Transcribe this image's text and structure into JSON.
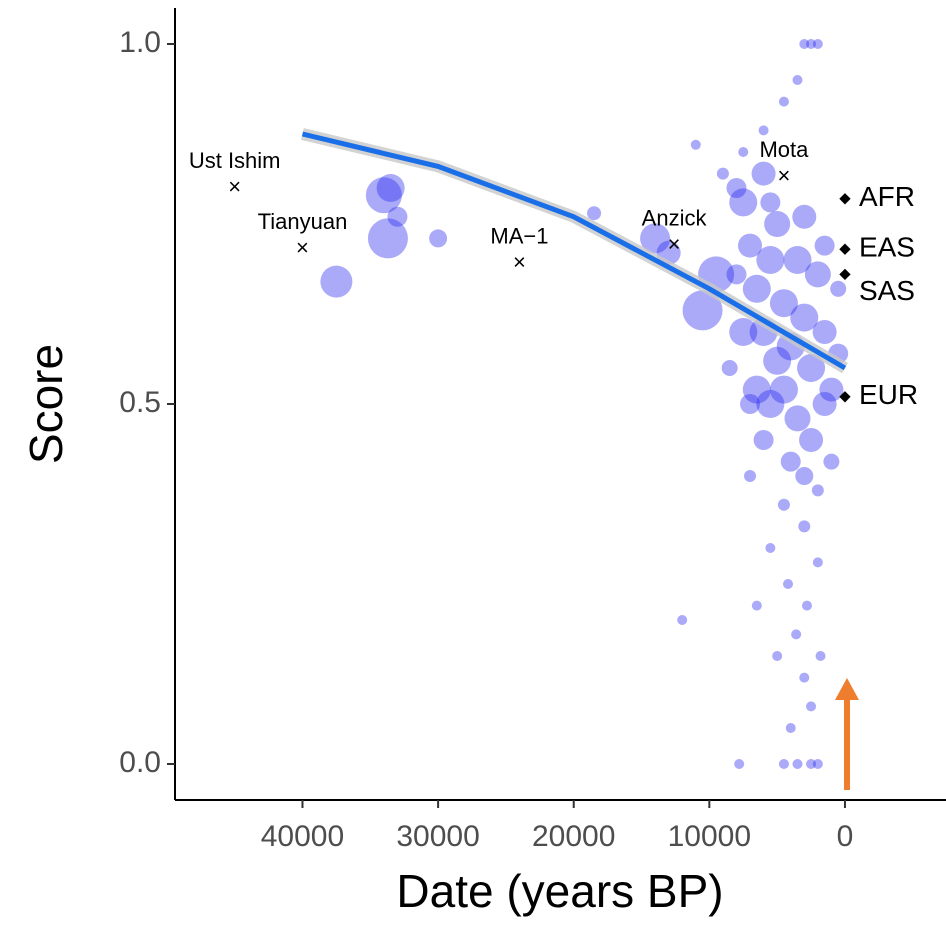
{
  "chart_data": {
    "type": "scatter",
    "x_label": "Date (years BP)",
    "y_label": "Score",
    "xlim": [
      49400,
      -7450
    ],
    "ylim": [
      -0.05,
      1.05
    ],
    "xticks": [
      40000,
      30000,
      20000,
      10000,
      0
    ],
    "yticks": [
      {
        "value": 0,
        "label": "0.0"
      },
      {
        "value": 0.5,
        "label": "0.5"
      },
      {
        "value": 1,
        "label": "1.0"
      }
    ],
    "color": "#2b2bf0",
    "series": [
      {
        "x": [
          34000,
          33700,
          33500,
          37500,
          30000,
          33000,
          18500,
          14000,
          13000,
          10500,
          9500,
          7500,
          6000,
          7000,
          6500,
          6000,
          5500,
          5000,
          4500,
          4000,
          3500,
          3000,
          2500,
          2000,
          1500,
          1000,
          500,
          7500,
          6500,
          5500,
          4500,
          3500,
          2500,
          1500,
          6000,
          4000,
          3000,
          5000,
          7000,
          8000,
          5500,
          3000,
          1500,
          500,
          8500,
          4500,
          3000,
          5500,
          2000,
          4200,
          2800,
          3600,
          5000,
          3000,
          2500,
          1800,
          6500,
          12000,
          4000,
          7800,
          4500,
          3500,
          2500,
          2000,
          3000,
          2500,
          2000,
          3500,
          4500,
          6000,
          11000,
          9000,
          8000,
          7500,
          2000,
          1000,
          7000
        ],
        "values": [
          0.79,
          0.73,
          0.8,
          0.67,
          0.73,
          0.76,
          0.765,
          0.73,
          0.71,
          0.63,
          0.68,
          0.78,
          0.82,
          0.72,
          0.66,
          0.6,
          0.7,
          0.75,
          0.64,
          0.58,
          0.7,
          0.62,
          0.55,
          0.68,
          0.6,
          0.52,
          0.57,
          0.6,
          0.52,
          0.5,
          0.52,
          0.48,
          0.45,
          0.5,
          0.45,
          0.42,
          0.4,
          0.56,
          0.5,
          0.68,
          0.78,
          0.76,
          0.72,
          0.66,
          0.55,
          0.36,
          0.33,
          0.3,
          0.28,
          0.25,
          0.22,
          0.18,
          0.15,
          0.12,
          0.08,
          0.15,
          0.22,
          0.2,
          0.05,
          0,
          0,
          0,
          0,
          0,
          1.0,
          1.0,
          1.0,
          0.95,
          0.92,
          0.88,
          0.86,
          0.82,
          0.8,
          0.85,
          0.38,
          0.42,
          0.4
        ],
        "sizes": [
          18,
          20,
          14,
          16,
          9,
          10,
          7,
          15,
          12,
          20,
          18,
          14,
          12,
          12,
          14,
          14,
          14,
          13,
          14,
          14,
          14,
          14,
          14,
          13,
          12,
          12,
          10,
          14,
          14,
          14,
          14,
          13,
          12,
          12,
          10,
          10,
          9,
          14,
          10,
          10,
          10,
          12,
          10,
          8,
          8,
          6,
          6,
          5,
          5,
          5,
          5,
          5,
          5,
          5,
          5,
          5,
          5,
          5,
          5,
          5,
          5,
          5,
          5,
          5,
          5,
          5,
          5,
          5,
          5,
          5,
          5,
          6,
          10,
          5,
          6,
          8,
          6
        ]
      }
    ],
    "trend": {
      "color": "#1a6fe8",
      "x": [
        40000,
        30000,
        20000,
        10000,
        0
      ],
      "y": [
        0.875,
        0.83,
        0.76,
        0.66,
        0.55
      ]
    },
    "annotations": [
      {
        "label": "Ust Ishim",
        "x": 45000,
        "y": 0.8
      },
      {
        "label": "Tianyuan",
        "x": 40000,
        "y": 0.715
      },
      {
        "label": "MA−1",
        "x": 24000,
        "y": 0.695
      },
      {
        "label": "Anzick",
        "x": 12600,
        "y": 0.72
      },
      {
        "label": "Mota",
        "x": 4500,
        "y": 0.815
      }
    ],
    "references": [
      {
        "label": "AFR",
        "x": 0,
        "y": 0.785
      },
      {
        "label": "EAS",
        "x": 0,
        "y": 0.715
      },
      {
        "label": "SAS",
        "x": 0,
        "y": 0.68
      },
      {
        "label": "EUR",
        "x": 0,
        "y": 0.51
      }
    ]
  }
}
